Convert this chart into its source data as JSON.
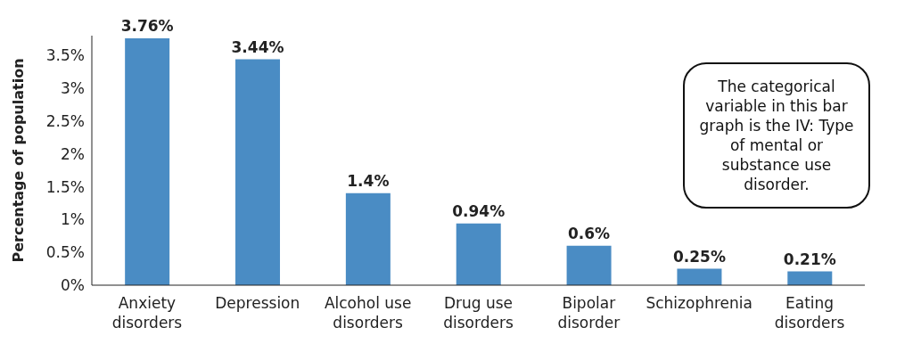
{
  "chart_data": {
    "type": "bar",
    "ylabel": "Percentage of population",
    "categories": [
      "Anxiety disorders",
      "Depression",
      "Alcohol use disorders",
      "Drug use disorders",
      "Bipolar disorder",
      "Schizophrenia",
      "Eating disorders"
    ],
    "values": [
      3.76,
      3.44,
      1.4,
      0.94,
      0.6,
      0.25,
      0.21
    ],
    "value_labels": [
      "3.76%",
      "3.44%",
      "1.4%",
      "0.94%",
      "0.6%",
      "0.25%",
      "0.21%"
    ],
    "color": "#4a8cc4",
    "ylim": [
      0,
      3.8
    ],
    "yticks": [
      {
        "value": 0,
        "label": "0%"
      },
      {
        "value": 0.5,
        "label": "0.5%"
      },
      {
        "value": 1,
        "label": "1%"
      },
      {
        "value": 1.5,
        "label": "1.5%"
      },
      {
        "value": 2,
        "label": "2%"
      },
      {
        "value": 2.5,
        "label": "2.5%"
      },
      {
        "value": 3,
        "label": "3%"
      },
      {
        "value": 3.5,
        "label": "3.5%"
      }
    ],
    "grid": false,
    "legend": false,
    "annotations": [
      "The categorical variable in this bar graph is the IV: Type of mental or substance use disorder."
    ]
  }
}
